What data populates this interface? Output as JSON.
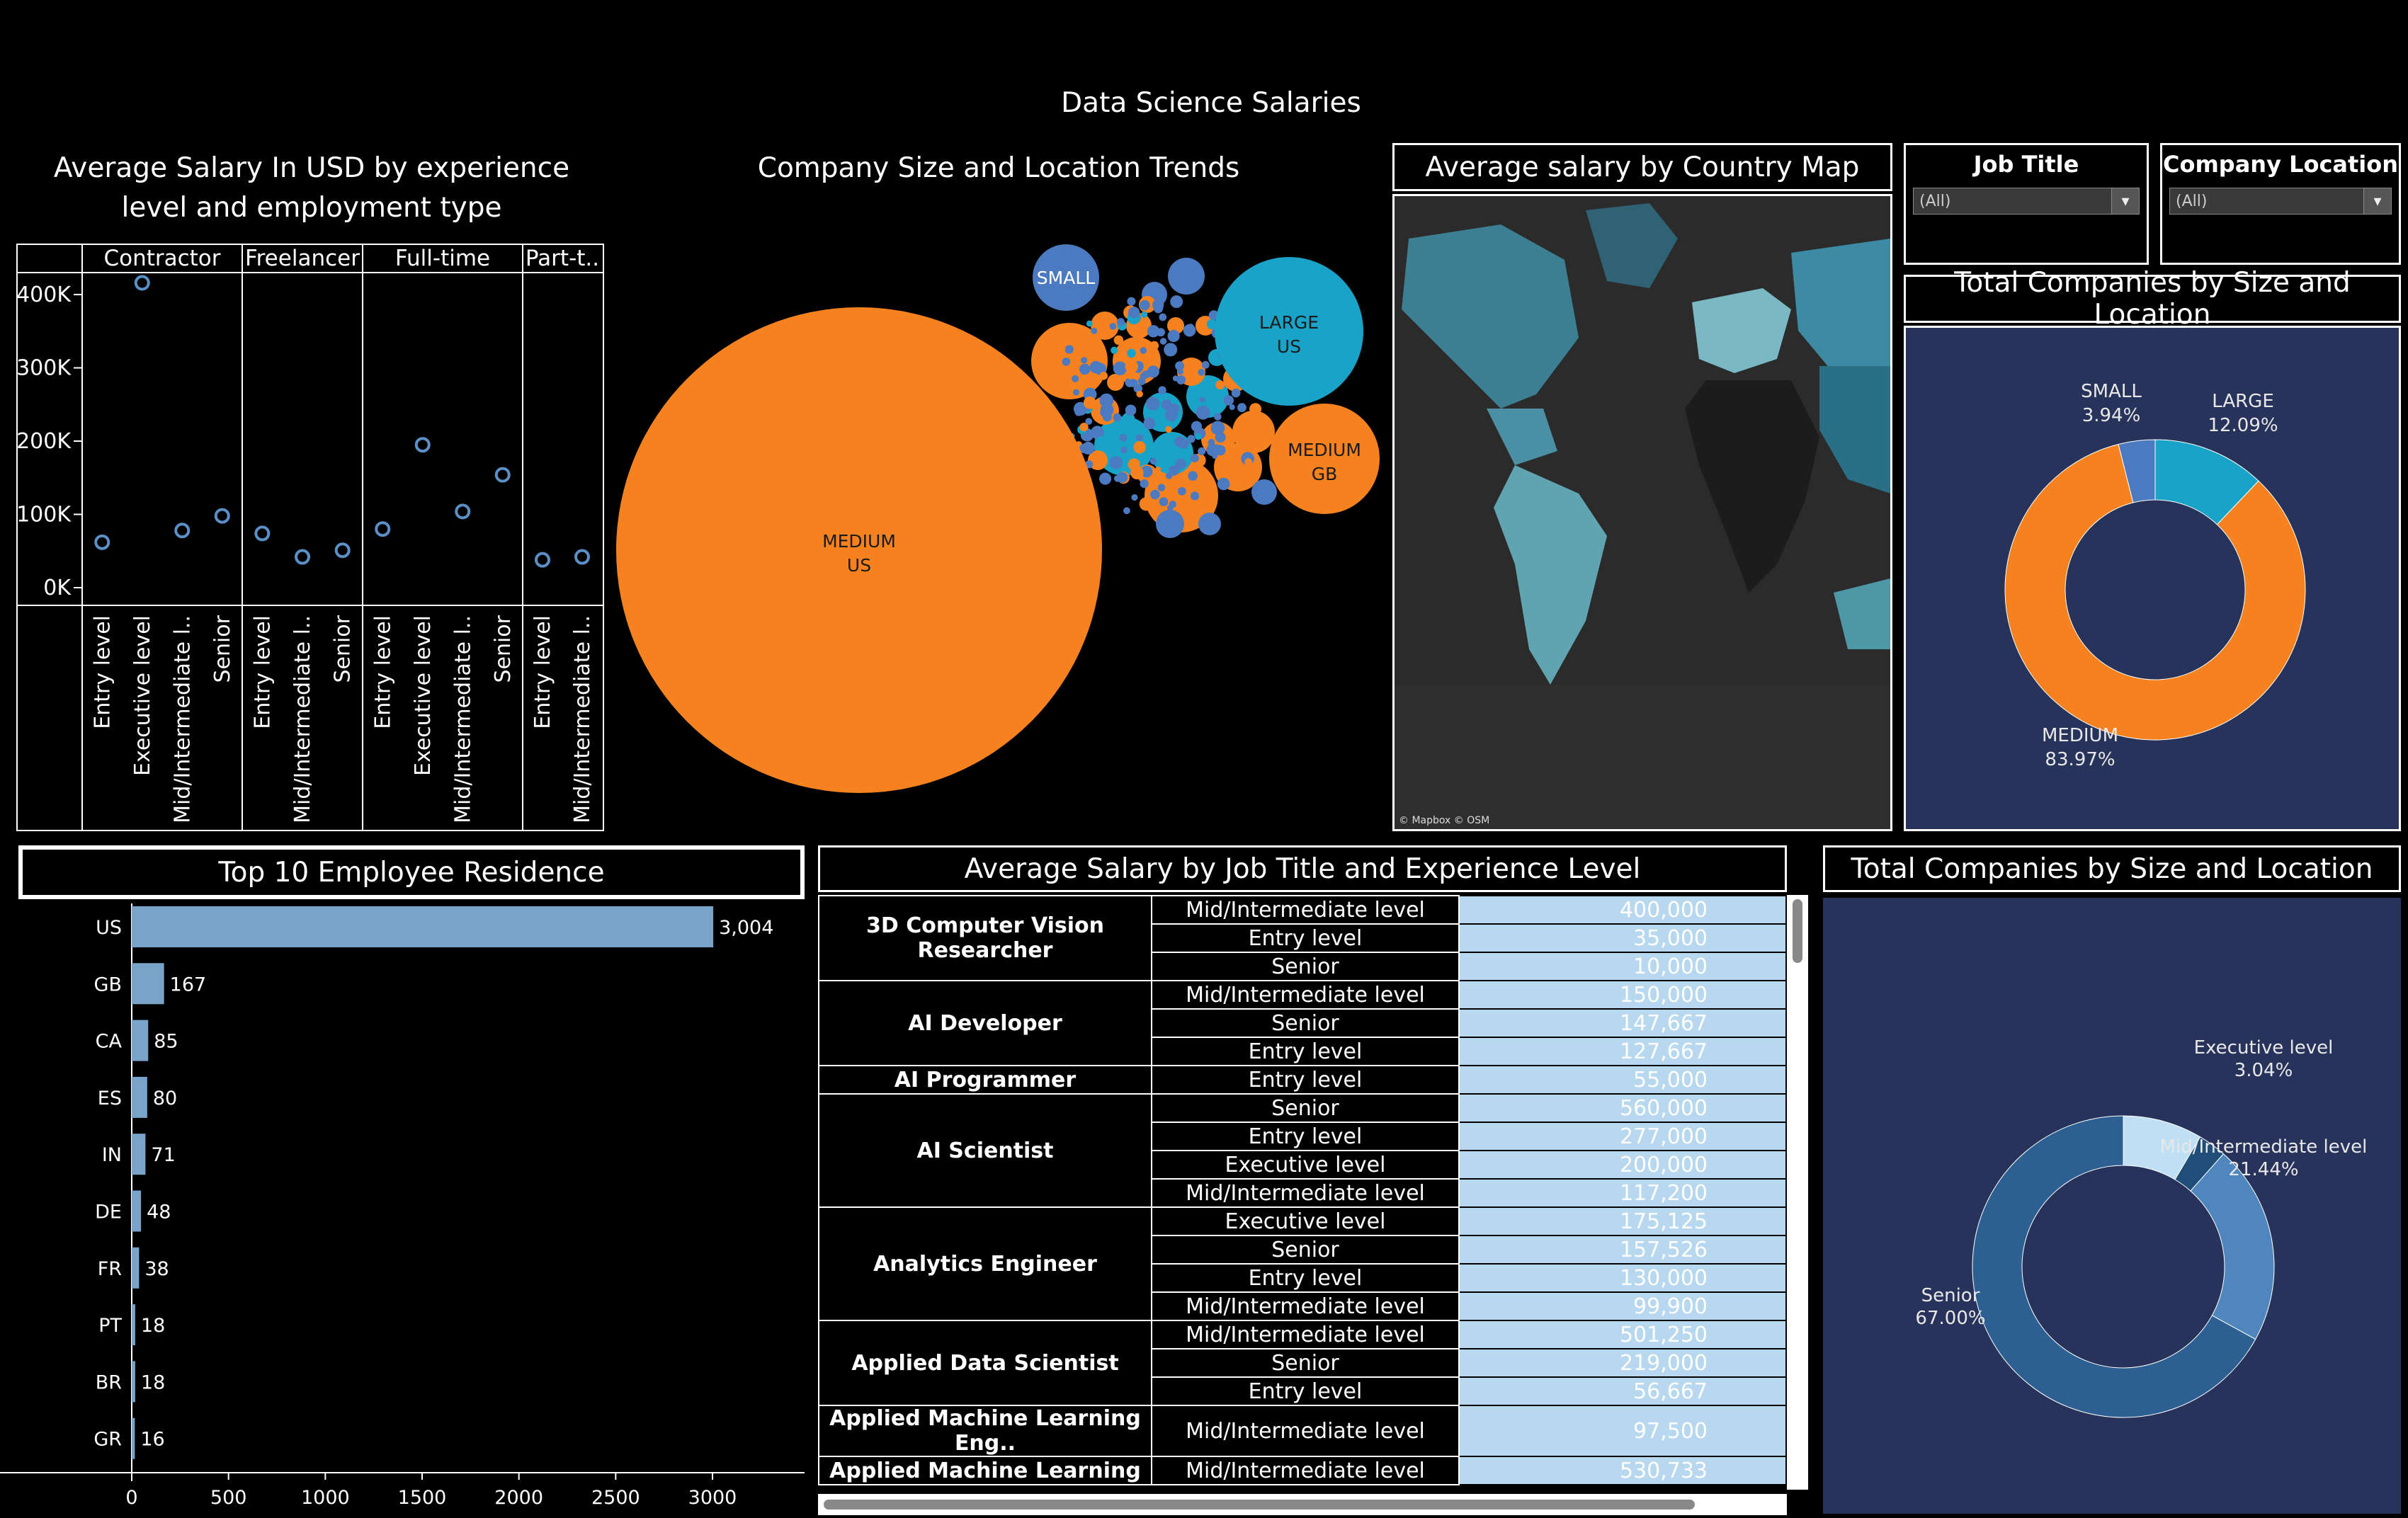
{
  "dashboard": {
    "title": "Data Science Salaries"
  },
  "panels": {
    "salary_by_exp": "Average Salary In USD by experience level and employment type",
    "bubbles": "Company Size and Location Trends",
    "map": "Average salary by Country Map",
    "map_credit": "© Mapbox © OSM",
    "donut1": "Total Companies by Size and Location",
    "residence": "Top 10 Employee Residence",
    "table": "Average Salary by Job Title and Experience Level",
    "donut2": "Total Companies by Size and Location"
  },
  "filters": [
    {
      "label": "Job Title",
      "value": "(All)"
    },
    {
      "label": "Company Location",
      "value": "(All)"
    }
  ],
  "chart_data": [
    {
      "type": "scatter",
      "title": "Average Salary In USD by experience level and employment type",
      "y_ticks": [
        "400K",
        "300K",
        "200K",
        "100K",
        "0K"
      ],
      "ylim": [
        0,
        430000
      ],
      "groups": [
        {
          "name": "Contractor",
          "x": [
            "Entry level",
            "Executive level",
            "Mid/Intermediate l..",
            "Senior"
          ],
          "y": [
            62000,
            416000,
            78000,
            98000
          ]
        },
        {
          "name": "Freelancer",
          "x": [
            "Entry level",
            "Mid/Intermediate l..",
            "Senior"
          ],
          "y": [
            74000,
            42000,
            51000
          ]
        },
        {
          "name": "Full-time",
          "x": [
            "Entry level",
            "Executive level",
            "Mid/Intermediate l..",
            "Senior"
          ],
          "y": [
            80000,
            195000,
            104000,
            154000
          ]
        },
        {
          "name": "Part-t..",
          "x": [
            "Entry level",
            "Mid/Intermediate l.."
          ],
          "y": [
            38000,
            42000
          ]
        }
      ],
      "color": "#5b8fc7"
    },
    {
      "type": "bubble",
      "title": "Company Size and Location Trends",
      "labeled": [
        {
          "size": "MEDIUM",
          "location": "US",
          "color": "#f5821f"
        },
        {
          "size": "LARGE",
          "location": "US",
          "color": "#1aa3c8"
        },
        {
          "size": "MEDIUM",
          "location": "GB",
          "color": "#f5821f"
        },
        {
          "size": "SMALL",
          "location": "",
          "color": "#4c7ac0"
        }
      ],
      "colors": {
        "MEDIUM": "#f5821f",
        "LARGE": "#1aa3c8",
        "SMALL": "#4c7ac0"
      }
    },
    {
      "type": "pie",
      "title": "Total Companies by Size and Location",
      "slices": [
        {
          "label": "LARGE",
          "value": 12.09,
          "pct": "12.09%",
          "color": "#1aa3c8"
        },
        {
          "label": "MEDIUM",
          "value": 83.97,
          "pct": "83.97%",
          "color": "#f5821f"
        },
        {
          "label": "SMALL",
          "value": 3.94,
          "pct": "3.94%",
          "color": "#4c7ac0"
        }
      ]
    },
    {
      "type": "bar",
      "title": "Top 10 Employee Residence",
      "categories": [
        "US",
        "GB",
        "CA",
        "ES",
        "IN",
        "DE",
        "FR",
        "PT",
        "BR",
        "GR"
      ],
      "values": [
        3004,
        167,
        85,
        80,
        71,
        48,
        38,
        18,
        18,
        16
      ],
      "labels": [
        "3,004",
        "167",
        "85",
        "80",
        "71",
        "48",
        "38",
        "18",
        "18",
        "16"
      ],
      "x_ticks": [
        0,
        500,
        1000,
        1500,
        2000,
        2500,
        3000
      ],
      "xlim": [
        0,
        3400
      ],
      "color": "#7aa3c9"
    },
    {
      "type": "table",
      "title": "Average Salary by Job Title and Experience Level",
      "rows": [
        {
          "job": "3D Computer Vision Researcher",
          "items": [
            [
              "Mid/Intermediate level",
              "400,000"
            ],
            [
              "Entry level",
              "35,000"
            ],
            [
              "Senior",
              "10,000"
            ]
          ]
        },
        {
          "job": "AI Developer",
          "items": [
            [
              "Mid/Intermediate level",
              "150,000"
            ],
            [
              "Senior",
              "147,667"
            ],
            [
              "Entry level",
              "127,667"
            ]
          ]
        },
        {
          "job": "AI Programmer",
          "items": [
            [
              "Entry level",
              "55,000"
            ]
          ]
        },
        {
          "job": "AI Scientist",
          "items": [
            [
              "Senior",
              "560,000"
            ],
            [
              "Entry level",
              "277,000"
            ],
            [
              "Executive level",
              "200,000"
            ],
            [
              "Mid/Intermediate level",
              "117,200"
            ]
          ]
        },
        {
          "job": "Analytics Engineer",
          "items": [
            [
              "Executive level",
              "175,125"
            ],
            [
              "Senior",
              "157,526"
            ],
            [
              "Entry level",
              "130,000"
            ],
            [
              "Mid/Intermediate level",
              "99,900"
            ]
          ]
        },
        {
          "job": "Applied Data Scientist",
          "items": [
            [
              "Mid/Intermediate level",
              "501,250"
            ],
            [
              "Senior",
              "219,000"
            ],
            [
              "Entry level",
              "56,667"
            ]
          ]
        },
        {
          "job": "Applied Machine Learning Eng..",
          "items": [
            [
              "Mid/Intermediate level",
              "97,500"
            ]
          ]
        },
        {
          "job": "Applied Machine Learning",
          "items": [
            [
              "Mid/Intermediate level",
              "530,733"
            ]
          ]
        }
      ]
    },
    {
      "type": "pie",
      "title": "Total Companies by Size and Location",
      "slices": [
        {
          "label": "Executive level",
          "value": 3.04,
          "pct": "3.04%",
          "color": "#1f4e79"
        },
        {
          "label": "Mid/Intermediate level",
          "value": 21.44,
          "pct": "21.44%",
          "color": "#4e86bd"
        },
        {
          "label": "Senior",
          "value": 67.0,
          "pct": "67.00%",
          "color": "#2e5f93"
        },
        {
          "label": "",
          "value": 8.52,
          "pct": "",
          "color": "#bfe0f4"
        }
      ]
    }
  ]
}
